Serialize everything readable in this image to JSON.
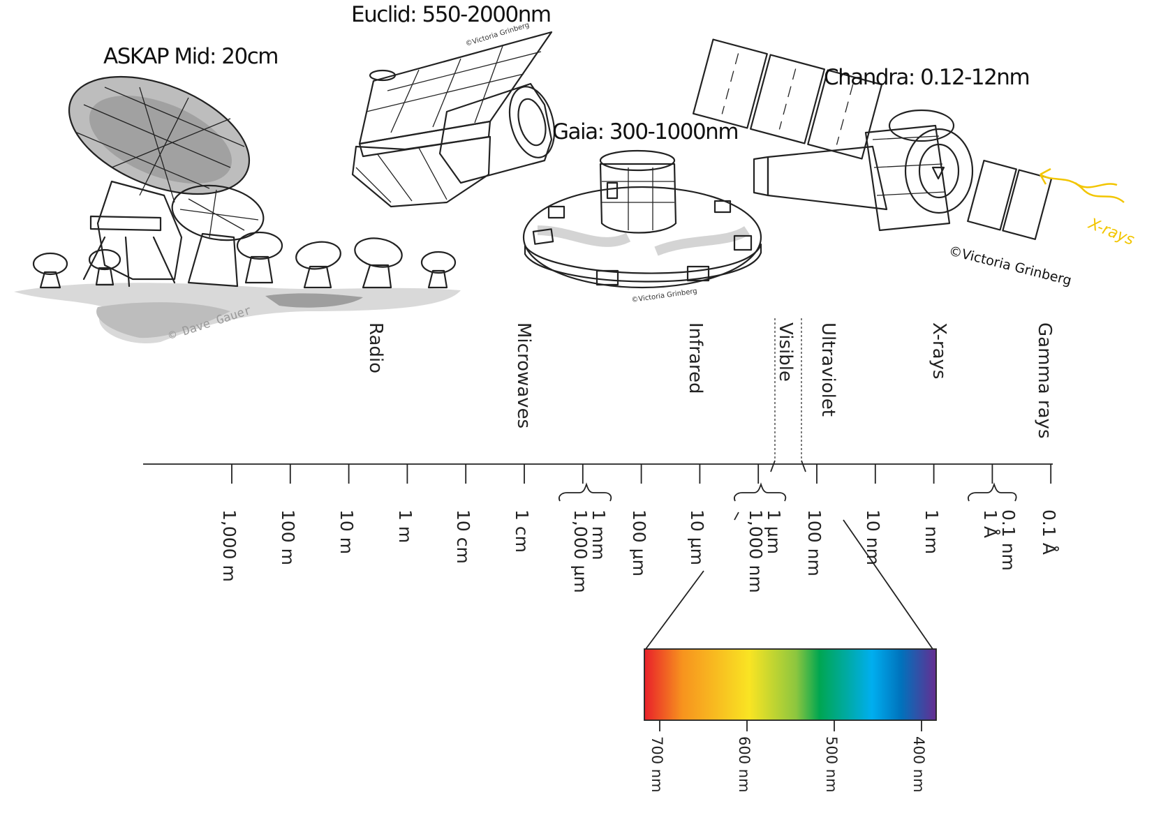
{
  "captions": {
    "euclid": "Euclid: 550-2000nm",
    "askap": "ASKAP Mid: 20cm",
    "gaia": "Gaia: 300-1000nm",
    "chandra": "Chandra: 0.12-12nm"
  },
  "credits": {
    "euclid": "©Victoria Grinberg",
    "gaia": "©Victoria Grinberg",
    "chandra": "©Victoria Grinberg",
    "askap": "© Dave Gauer"
  },
  "xray_arrow_label": "X-rays",
  "bands": [
    "Radio",
    "Microwaves",
    "Infrared",
    "Visible",
    "Ultraviolet",
    "X-rays",
    "Gamma rays"
  ],
  "ticks": [
    "1,000 m",
    "100 m",
    "10 m",
    "1 m",
    "10 cm",
    "1 cm",
    "100 µm",
    "10 µm",
    "100 nm",
    "10 nm",
    "1 nm",
    "0.1 Å"
  ],
  "equivalences": [
    {
      "upper": "1,000 µm",
      "lower": "1 mm"
    },
    {
      "upper": "1,000 nm",
      "lower": "1 µm"
    },
    {
      "upper": "1 Å",
      "lower": "0.1 nm"
    }
  ],
  "visible_ticks": [
    "700 nm",
    "600 nm",
    "500 nm",
    "400 nm"
  ],
  "colors": {
    "ink": "#222222",
    "highlight": "#f7dc7a",
    "xray_arrow": "#f2c500",
    "spectrum": [
      "#e8202a",
      "#f7931e",
      "#f9e423",
      "#8cc63f",
      "#00a651",
      "#00aeef",
      "#0072bc",
      "#662d91"
    ]
  }
}
